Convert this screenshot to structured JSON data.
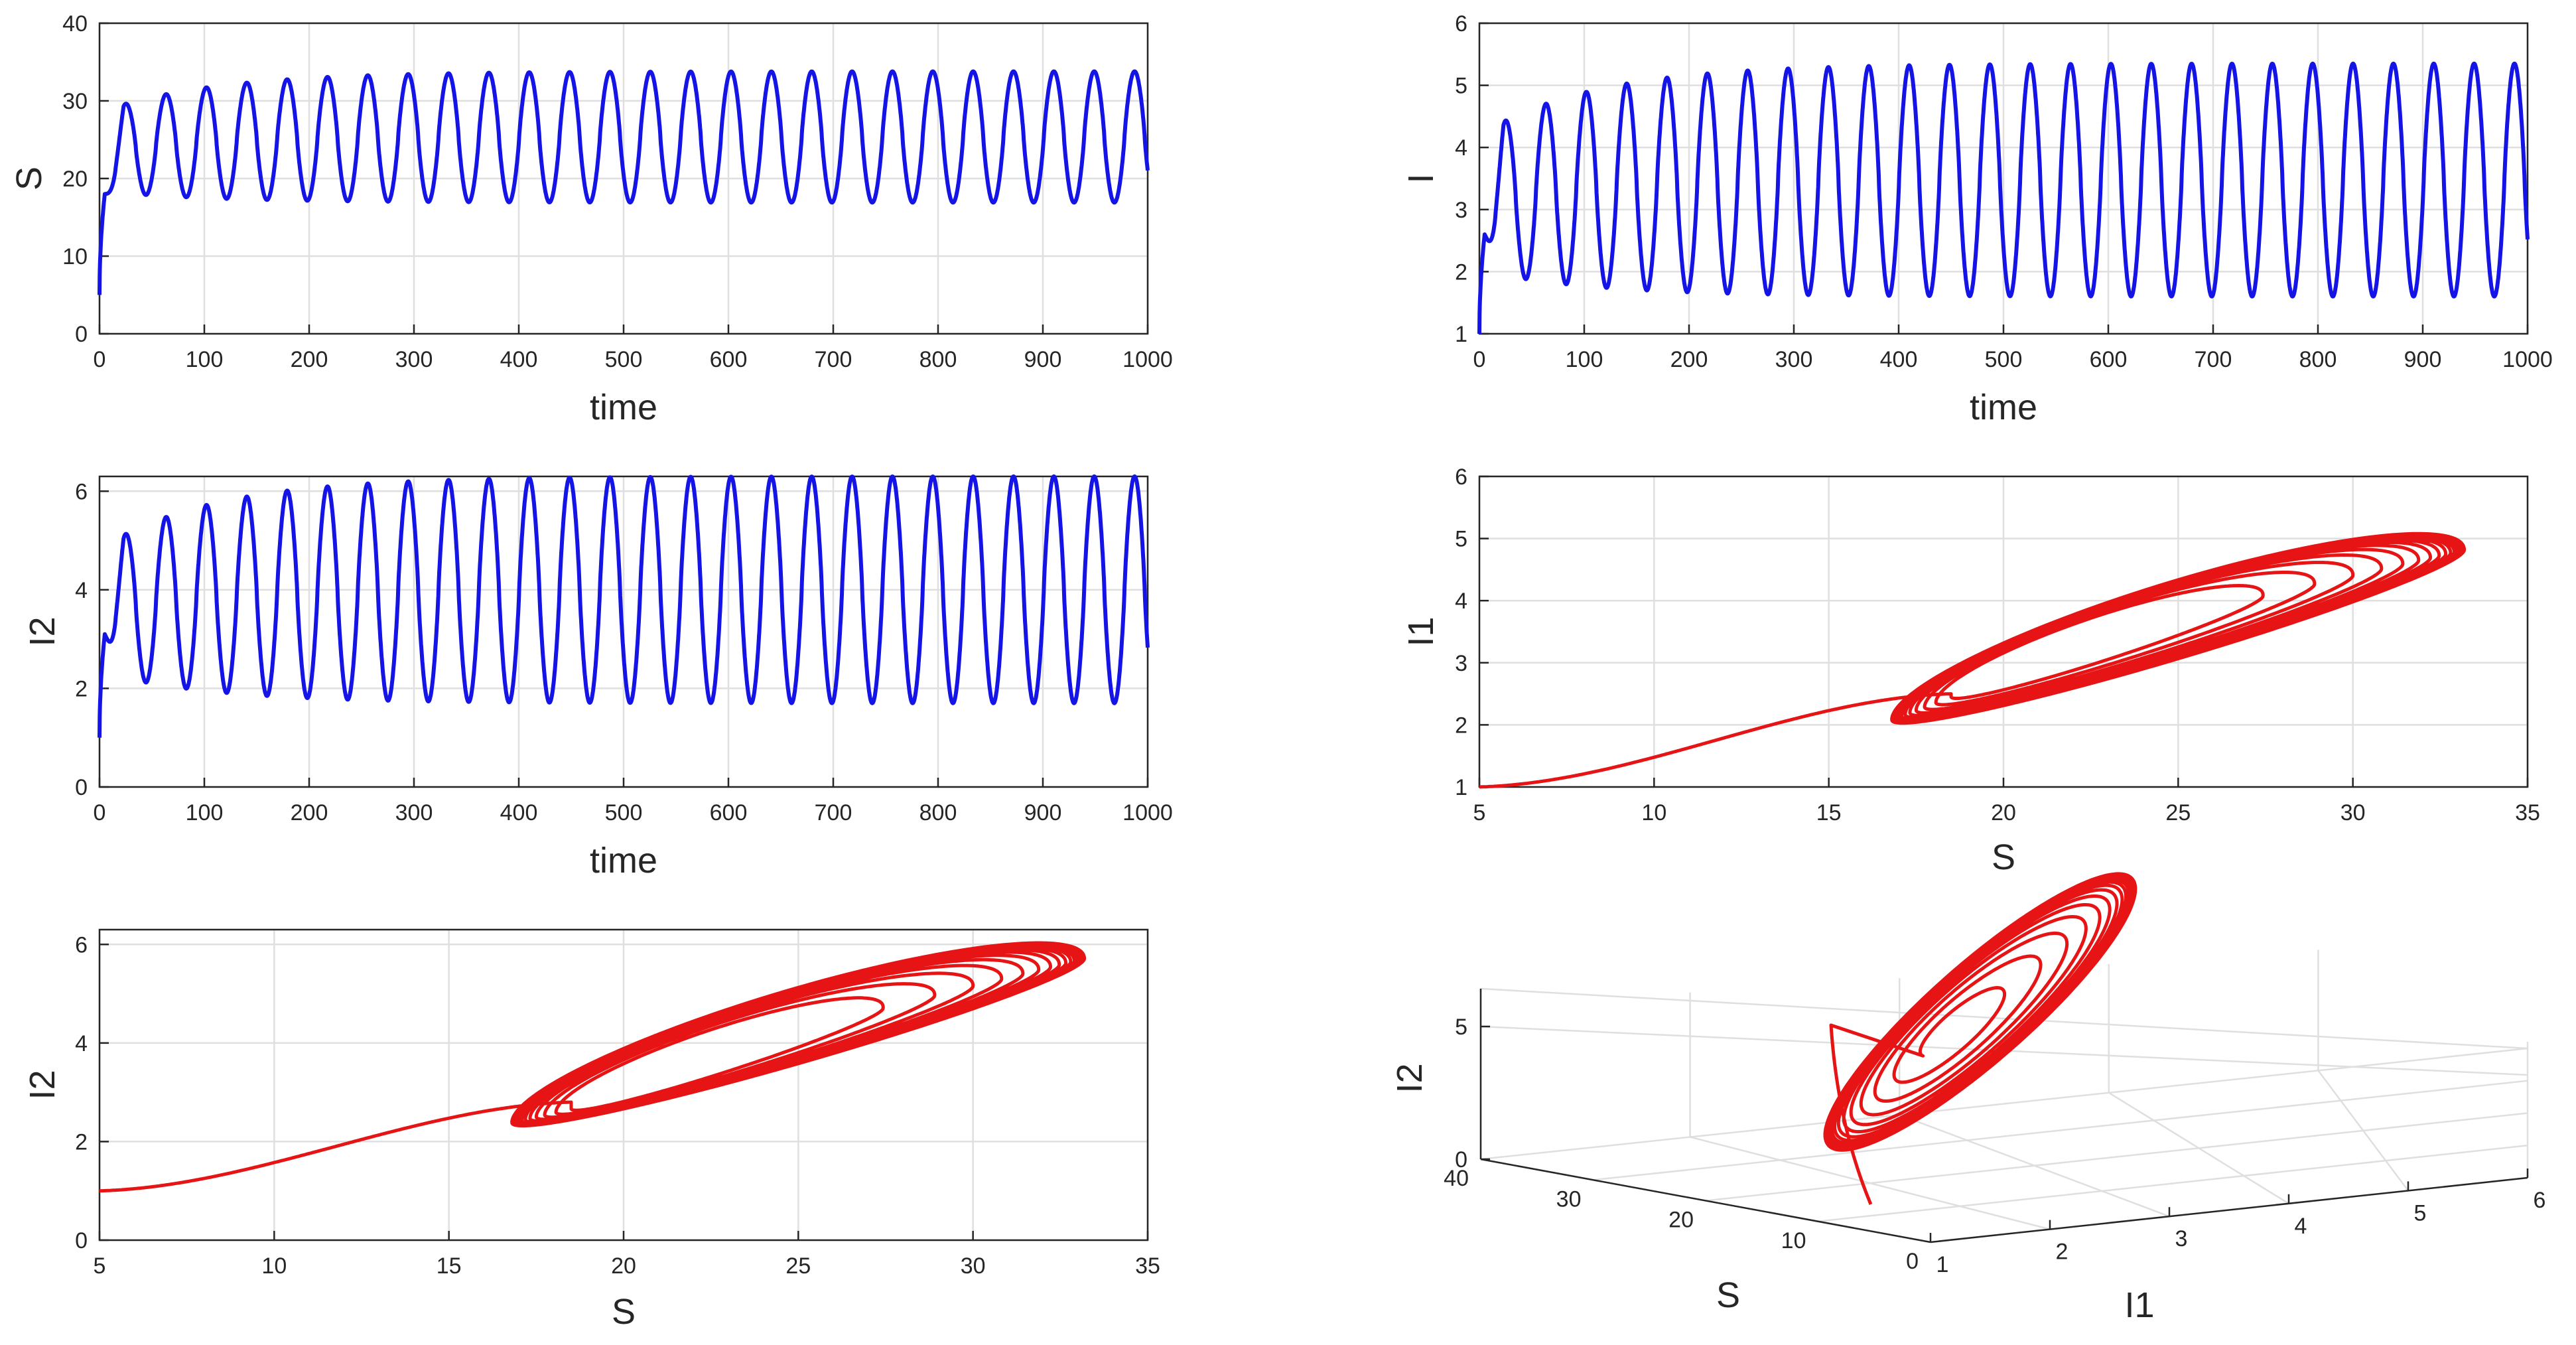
{
  "chart_data": [
    {
      "id": "S-vs-time",
      "type": "line",
      "xlabel": "time",
      "ylabel": "S",
      "xlim": [
        0,
        1000
      ],
      "ylim": [
        0,
        40
      ],
      "xticks": [
        "0",
        "100",
        "200",
        "300",
        "400",
        "500",
        "600",
        "700",
        "800",
        "900",
        "1000"
      ],
      "yticks": [
        "0",
        "10",
        "20",
        "30",
        "40"
      ],
      "grid": true,
      "color": "#1414e6",
      "series": [
        {
          "t0": 0,
          "t1": 1000,
          "period": 38.5,
          "start": 5.0,
          "jump_to": 18.0,
          "jump_time": 5,
          "first_peak": 28.8,
          "first_trough": 18.3,
          "final_max": 33.8,
          "final_min": 16.9,
          "end_value": 17.7
        }
      ]
    },
    {
      "id": "I-vs-time",
      "type": "line",
      "xlabel": "time",
      "ylabel": "I",
      "xlim": [
        0,
        1000
      ],
      "ylim": [
        1,
        6
      ],
      "xticks": [
        "0",
        "100",
        "200",
        "300",
        "400",
        "500",
        "600",
        "700",
        "800",
        "900",
        "1000"
      ],
      "yticks": [
        "1",
        "2",
        "3",
        "4",
        "5",
        "6"
      ],
      "grid": true,
      "color": "#1414e6",
      "series": [
        {
          "t0": 0,
          "t1": 1000,
          "period": 38.5,
          "start": 1.0,
          "jump_to": 2.6,
          "jump_time": 5,
          "first_peak": 4.25,
          "first_trough": 2.0,
          "final_max": 5.35,
          "final_min": 1.6,
          "end_value": 2.4
        }
      ]
    },
    {
      "id": "I2-vs-time",
      "type": "line",
      "xlabel": "time",
      "ylabel": "I2",
      "xlim": [
        0,
        1000
      ],
      "ylim": [
        0,
        6.3
      ],
      "xticks": [
        "0",
        "100",
        "200",
        "300",
        "400",
        "500",
        "600",
        "700",
        "800",
        "900",
        "1000"
      ],
      "yticks": [
        "0",
        "2",
        "4",
        "6"
      ],
      "ytick_values": [
        0,
        2,
        4,
        6
      ],
      "grid": true,
      "color": "#1414e6",
      "series": [
        {
          "t0": 0,
          "t1": 1000,
          "period": 38.5,
          "start": 1.0,
          "jump_to": 3.1,
          "jump_time": 5,
          "first_peak": 4.9,
          "first_trough": 2.3,
          "final_max": 6.3,
          "final_min": 1.7,
          "end_value": 2.5
        }
      ]
    },
    {
      "id": "I1-vs-S",
      "type": "line",
      "xlabel": "S",
      "ylabel": "I1",
      "xlim": [
        5,
        35
      ],
      "ylim": [
        1,
        6
      ],
      "xticks": [
        "5",
        "10",
        "15",
        "20",
        "25",
        "30",
        "35"
      ],
      "yticks": [
        "1",
        "2",
        "3",
        "4",
        "5",
        "6"
      ],
      "grid": true,
      "color": "#e61414",
      "series": [
        {
          "start": [
            5.0,
            1.0
          ],
          "approach_end": [
            18.5,
            2.5
          ],
          "inner_center": [
            22.5,
            3.2
          ],
          "inner_radius": [
            4.0,
            1.0
          ],
          "limit_center": [
            25.0,
            3.45
          ],
          "limit_radius": [
            8.2,
            1.85
          ],
          "tilt": 0.74,
          "inner_gap": 0.5,
          "outer_gap": 1.15,
          "kink": [
            21.8,
            3.0
          ]
        }
      ]
    },
    {
      "id": "I2-vs-S",
      "type": "line",
      "xlabel": "S",
      "ylabel": "I2",
      "xlim": [
        5,
        35
      ],
      "ylim": [
        0,
        6.3
      ],
      "xticks": [
        "5",
        "10",
        "15",
        "20",
        "25",
        "30",
        "35"
      ],
      "yticks": [
        "0",
        "2",
        "4",
        "6"
      ],
      "ytick_values": [
        0,
        2,
        4,
        6
      ],
      "grid": true,
      "color": "#e61414",
      "series": [
        {
          "start": [
            5.0,
            1.0
          ],
          "approach_end": [
            18.5,
            2.8
          ],
          "inner_center": [
            22.5,
            3.6
          ],
          "inner_radius": [
            4.0,
            1.25
          ],
          "limit_center": [
            25.0,
            4.05
          ],
          "limit_radius": [
            8.2,
            2.25
          ],
          "tilt": 0.74,
          "inner_gap": 0.5,
          "outer_gap": 1.15,
          "kink": [
            21.8,
            3.3
          ]
        }
      ]
    },
    {
      "id": "3d-phase",
      "type": "line",
      "xlabel": "I1",
      "ylabel": "S",
      "zlabel": "I2",
      "xticks": [
        "1",
        "2",
        "3",
        "4",
        "5",
        "6"
      ],
      "yticks": [
        "0",
        "10",
        "20",
        "30",
        "40"
      ],
      "zticks": [
        "0",
        "5"
      ],
      "grid": true,
      "color": "#e61414"
    }
  ]
}
